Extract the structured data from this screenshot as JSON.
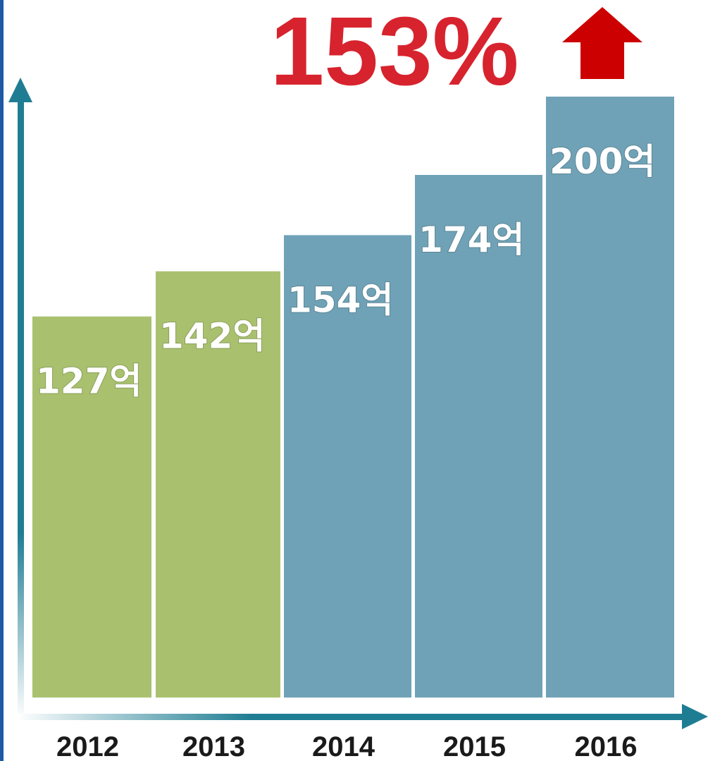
{
  "headline": {
    "text": "153%",
    "icon": "up-arrow-icon",
    "color": "#d7232e",
    "arrow_color": "#cc0000"
  },
  "colors": {
    "green": "#a9c16e",
    "blue": "#6fa2b6",
    "axis": "#1f7d93",
    "label": "#ffffff",
    "tick": "#1a1a1a",
    "frame": "#1f5aa6"
  },
  "chart_data": {
    "type": "bar",
    "categories": [
      "2012",
      "2013",
      "2014",
      "2015",
      "2016"
    ],
    "values": [
      127,
      142,
      154,
      174,
      200
    ],
    "data_labels": [
      "127억",
      "142억",
      "154억",
      "174억",
      "200억"
    ],
    "bar_colors": [
      "#a9c16e",
      "#a9c16e",
      "#6fa2b6",
      "#6fa2b6",
      "#6fa2b6"
    ],
    "title": "",
    "xlabel": "",
    "ylabel": "",
    "grid": false
  }
}
